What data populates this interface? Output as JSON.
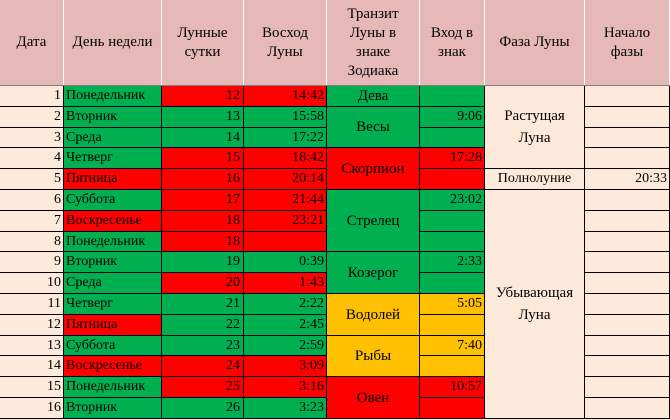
{
  "headers": {
    "date": "Дата",
    "weekday": "День недели",
    "lunar_day": "Лунные\nсутки",
    "moonrise": "Восход\nЛуны",
    "transit": "Транзит\nЛуны в\nзнаке\nЗодиака",
    "entry": "Вход в\nзнак",
    "phase": "Фаза Луны",
    "phase_start": "Начало\nфазы"
  },
  "colors": {
    "green": "#00b050",
    "red": "#ff0000",
    "orange": "#ffc000",
    "header": "#e6b9b8",
    "background": "#fde9d9"
  },
  "rows": [
    {
      "date": "1",
      "weekday": "Понедельник",
      "day_color": "green",
      "lunar": "12",
      "lunar_color": "red",
      "rise": "14:42",
      "rise_color": "red",
      "entry": "",
      "entry_color": "green"
    },
    {
      "date": "2",
      "weekday": "Вторник",
      "day_color": "green",
      "lunar": "13",
      "lunar_color": "green",
      "rise": "15:58",
      "rise_color": "green",
      "entry": "9:06",
      "entry_color": "green"
    },
    {
      "date": "3",
      "weekday": "Среда",
      "day_color": "green",
      "lunar": "14",
      "lunar_color": "green",
      "rise": "17:22",
      "rise_color": "green",
      "entry": "",
      "entry_color": "green"
    },
    {
      "date": "4",
      "weekday": "Четверг",
      "day_color": "green",
      "lunar": "15",
      "lunar_color": "red",
      "rise": "18:42",
      "rise_color": "red",
      "entry": "17:28",
      "entry_color": "red"
    },
    {
      "date": "5",
      "weekday": "Пятница",
      "day_color": "red",
      "lunar": "16",
      "lunar_color": "red",
      "rise": "20:14",
      "rise_color": "red",
      "entry": "",
      "entry_color": "red"
    },
    {
      "date": "6",
      "weekday": "Суббота",
      "day_color": "green",
      "lunar": "17",
      "lunar_color": "red",
      "rise": "21:44",
      "rise_color": "red",
      "entry": "23:02",
      "entry_color": "green"
    },
    {
      "date": "7",
      "weekday": "Воскресенье",
      "day_color": "red",
      "lunar": "18",
      "lunar_color": "red",
      "rise": "23:21",
      "rise_color": "red",
      "entry": "",
      "entry_color": "green"
    },
    {
      "date": "8",
      "weekday": "Понедельник",
      "day_color": "green",
      "lunar": "18",
      "lunar_color": "red",
      "rise": "",
      "rise_color": "red",
      "entry": "",
      "entry_color": "green"
    },
    {
      "date": "9",
      "weekday": "Вторник",
      "day_color": "green",
      "lunar": "19",
      "lunar_color": "green",
      "rise": "0:39",
      "rise_color": "green",
      "entry": "2:33",
      "entry_color": "green"
    },
    {
      "date": "10",
      "weekday": "Среда",
      "day_color": "green",
      "lunar": "20",
      "lunar_color": "red",
      "rise": "1:43",
      "rise_color": "red",
      "entry": "",
      "entry_color": "green"
    },
    {
      "date": "11",
      "weekday": "Четверг",
      "day_color": "green",
      "lunar": "21",
      "lunar_color": "green",
      "rise": "2:22",
      "rise_color": "green",
      "entry": "5:05",
      "entry_color": "orange"
    },
    {
      "date": "12",
      "weekday": "Пятница",
      "day_color": "red",
      "lunar": "22",
      "lunar_color": "green",
      "rise": "2:45",
      "rise_color": "green",
      "entry": "",
      "entry_color": "orange"
    },
    {
      "date": "13",
      "weekday": "Суббота",
      "day_color": "green",
      "lunar": "23",
      "lunar_color": "green",
      "rise": "2:59",
      "rise_color": "green",
      "entry": "7:40",
      "entry_color": "orange"
    },
    {
      "date": "14",
      "weekday": "Воскресенье",
      "day_color": "red",
      "lunar": "24",
      "lunar_color": "red",
      "rise": "3:09",
      "rise_color": "red",
      "entry": "",
      "entry_color": "orange"
    },
    {
      "date": "15",
      "weekday": "Понедельник",
      "day_color": "green",
      "lunar": "25",
      "lunar_color": "red",
      "rise": "3:16",
      "rise_color": "red",
      "entry": "10:57",
      "entry_color": "red"
    },
    {
      "date": "16",
      "weekday": "Вторник",
      "day_color": "green",
      "lunar": "26",
      "lunar_color": "green",
      "rise": "3:23",
      "rise_color": "green",
      "entry": "",
      "entry_color": "red"
    }
  ],
  "zodiac": [
    {
      "name": "Дева",
      "start": 0,
      "span": 1,
      "color": "green"
    },
    {
      "name": "Весы",
      "start": 1,
      "span": 2,
      "color": "green"
    },
    {
      "name": "Скорпион",
      "start": 3,
      "span": 2,
      "color": "red"
    },
    {
      "name": "Стрелец",
      "start": 5,
      "span": 3,
      "color": "green"
    },
    {
      "name": "Козерог",
      "start": 8,
      "span": 2,
      "color": "green"
    },
    {
      "name": "Водолей",
      "start": 10,
      "span": 2,
      "color": "orange"
    },
    {
      "name": "Рыбы",
      "start": 12,
      "span": 2,
      "color": "orange"
    },
    {
      "name": "Овен",
      "start": 14,
      "span": 2,
      "color": "red"
    }
  ],
  "phases": [
    {
      "name": "Растущая\nЛуна",
      "start": 0,
      "span": 4,
      "time": ""
    },
    {
      "name": "Полнолуние",
      "start": 4,
      "span": 1,
      "time": "20:33"
    },
    {
      "name": "Убывающая\nЛуна",
      "start": 5,
      "span": 11,
      "time": ""
    }
  ]
}
